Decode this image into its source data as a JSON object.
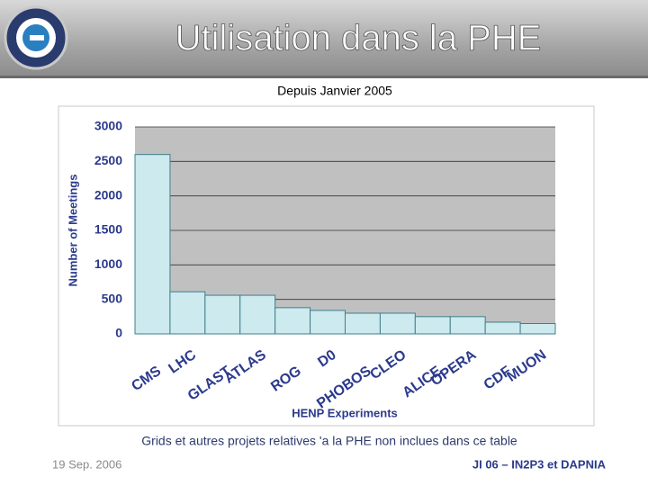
{
  "slide": {
    "title": "Utilisation dans la PHE",
    "caption": "Grids et autres projets relatives 'a la PHE non inclues dans ce table",
    "footer_left": "19 Sep. 2006",
    "footer_right": "JI 06 – IN2P3 et DAPNIA"
  },
  "chart_data": {
    "type": "bar",
    "title": "Depuis Janvier 2005",
    "x_label": "HENP Experiments",
    "y_label": "Number of Meetings",
    "categories": [
      "CMS",
      "LHC",
      "GLAST",
      "ATLAS",
      "ROG",
      "D0",
      "PHOBOS",
      "CLEO",
      "ALICE",
      "OPERA",
      "CDF",
      "MUON"
    ],
    "values": [
      2600,
      610,
      560,
      560,
      380,
      340,
      300,
      300,
      250,
      250,
      170,
      150
    ],
    "color": "#cdeaee",
    "ylim": [
      0,
      3000
    ],
    "yticks": [
      0,
      500,
      1000,
      1500,
      2000,
      2500,
      3000
    ],
    "grid": true
  }
}
